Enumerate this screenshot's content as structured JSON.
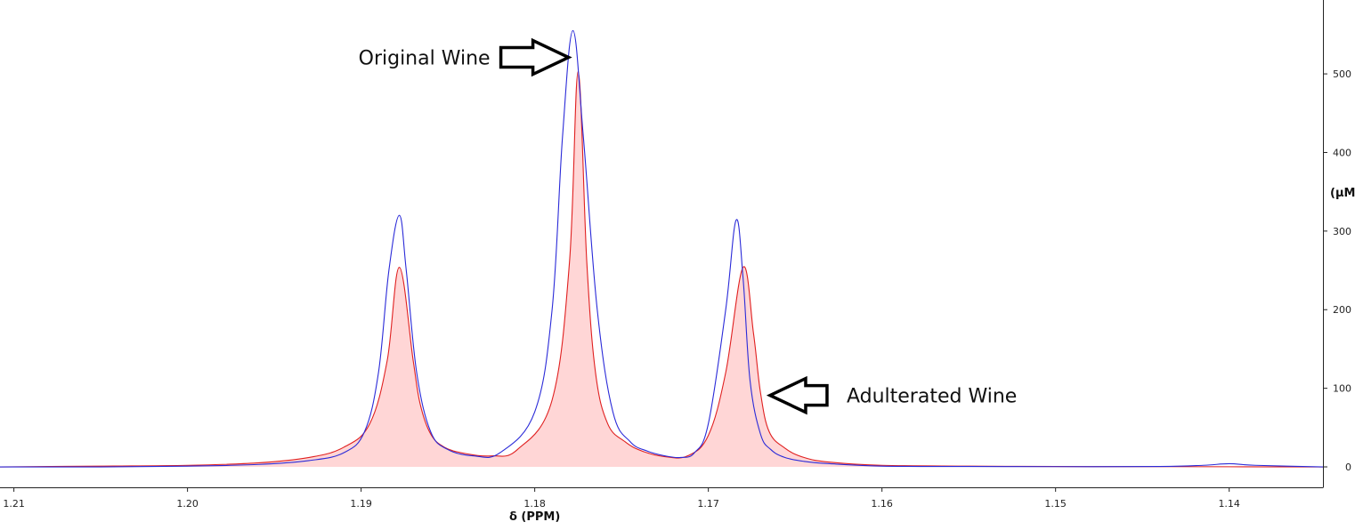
{
  "chart_data": {
    "type": "line",
    "xlabel": "δ (PPM)",
    "ylabel": "(μM",
    "x_reversed": true,
    "xlim": [
      1.2108,
      1.1346
    ],
    "ylim": [
      -26,
      594
    ],
    "x_ticks": [
      {
        "value": 1.21,
        "label": "1.21"
      },
      {
        "value": 1.2,
        "label": "1.20"
      },
      {
        "value": 1.19,
        "label": "1.19"
      },
      {
        "value": 1.18,
        "label": "1.18"
      },
      {
        "value": 1.17,
        "label": "1.17"
      },
      {
        "value": 1.16,
        "label": "1.16"
      },
      {
        "value": 1.15,
        "label": "1.15"
      },
      {
        "value": 1.14,
        "label": "1.14"
      }
    ],
    "y_ticks": [
      {
        "value": 0,
        "label": "0"
      },
      {
        "value": 100,
        "label": "100"
      },
      {
        "value": 200,
        "label": "200"
      },
      {
        "value": 300,
        "label": "300"
      },
      {
        "value": 400,
        "label": "400"
      },
      {
        "value": 500,
        "label": "500"
      }
    ],
    "grid": false,
    "series": [
      {
        "name": "Original Wine",
        "color": "#2a2ad8",
        "filled": false,
        "x": [
          1.2108,
          1.205,
          1.2,
          1.196,
          1.193,
          1.191,
          1.1898,
          1.189,
          1.1884,
          1.1878,
          1.1874,
          1.1868,
          1.186,
          1.185,
          1.1835,
          1.182,
          1.18,
          1.179,
          1.1784,
          1.1778,
          1.1772,
          1.1764,
          1.1755,
          1.1745,
          1.1735,
          1.1725,
          1.1716,
          1.1708,
          1.17,
          1.169,
          1.1684,
          1.168,
          1.1676,
          1.167,
          1.1664,
          1.1656,
          1.1645,
          1.163,
          1.16,
          1.155,
          1.15,
          1.144,
          1.1415,
          1.14,
          1.1385,
          1.1346
        ],
        "y": [
          0,
          0,
          1,
          3,
          8,
          18,
          45,
          120,
          250,
          320,
          250,
          120,
          45,
          22,
          14,
          18,
          70,
          200,
          420,
          555,
          420,
          200,
          70,
          32,
          20,
          14,
          12,
          18,
          55,
          200,
          314,
          240,
          110,
          42,
          22,
          12,
          7,
          4,
          1,
          0.5,
          0.3,
          0.5,
          2,
          4,
          2,
          0
        ]
      },
      {
        "name": "Adulterated Wine",
        "color": "#e02020",
        "fill": "#ffd6d6",
        "filled": true,
        "x": [
          1.2108,
          1.205,
          1.2,
          1.196,
          1.193,
          1.191,
          1.1895,
          1.1885,
          1.1878,
          1.187,
          1.1866,
          1.186,
          1.1852,
          1.184,
          1.1825,
          1.181,
          1.179,
          1.178,
          1.1775,
          1.177,
          1.1765,
          1.1758,
          1.1748,
          1.1738,
          1.1725,
          1.1712,
          1.17,
          1.169,
          1.168,
          1.1674,
          1.167,
          1.1665,
          1.1656,
          1.1645,
          1.163,
          1.16,
          1.155,
          1.15,
          1.144,
          1.1346
        ],
        "y": [
          0,
          1,
          2,
          5,
          12,
          25,
          55,
          135,
          254,
          135,
          80,
          42,
          25,
          17,
          14,
          22,
          85,
          260,
          503,
          260,
          120,
          55,
          32,
          20,
          13,
          14,
          40,
          120,
          254,
          170,
          95,
          45,
          24,
          12,
          6,
          2,
          1,
          0.5,
          0.3,
          0
        ]
      }
    ],
    "annotations": [
      {
        "text": "Original Wine",
        "series": "Original Wine",
        "arrow_direction": "right"
      },
      {
        "text": "Adulterated Wine",
        "series": "Adulterated Wine",
        "arrow_direction": "left"
      }
    ]
  }
}
